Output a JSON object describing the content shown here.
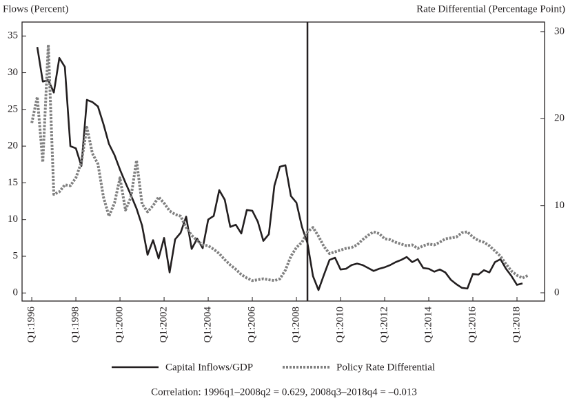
{
  "chart_data": {
    "type": "line",
    "y_label": "Flows (Percent)",
    "y2_label": "Rate Differential (Percentage Point)",
    "note": "Correlation: 1996q1–2008q2 = 0.629, 2008q3–2018q4 = –0.013",
    "x": [
      1996,
      1996.25,
      1996.5,
      1996.75,
      1997,
      1997.25,
      1997.5,
      1997.75,
      1998,
      1998.25,
      1998.5,
      1998.75,
      1999,
      1999.25,
      1999.5,
      1999.75,
      2000,
      2000.25,
      2000.5,
      2000.75,
      2001,
      2001.25,
      2001.5,
      2001.75,
      2002,
      2002.25,
      2002.5,
      2002.75,
      2003,
      2003.25,
      2003.5,
      2003.75,
      2004,
      2004.25,
      2004.5,
      2004.75,
      2005,
      2005.25,
      2005.5,
      2005.75,
      2006,
      2006.25,
      2006.5,
      2006.75,
      2007,
      2007.25,
      2007.5,
      2007.75,
      2008,
      2008.25,
      2008.5,
      2008.75,
      2009,
      2009.25,
      2009.5,
      2009.75,
      2010,
      2010.25,
      2010.5,
      2010.75,
      2011,
      2011.25,
      2011.5,
      2011.75,
      2012,
      2012.25,
      2012.5,
      2012.75,
      2013,
      2013.25,
      2013.5,
      2013.75,
      2014,
      2014.25,
      2014.5,
      2014.75,
      2015,
      2015.25,
      2015.5,
      2015.75,
      2016,
      2016.25,
      2016.5,
      2016.75,
      2017,
      2017.25,
      2017.5,
      2017.75,
      2018,
      2018.25,
      2018.5
    ],
    "xlim": [
      1995.56,
      2019.25
    ],
    "xticks": [
      {
        "value": 1996,
        "label": "Q1:1996"
      },
      {
        "value": 1998,
        "label": "Q1:1998"
      },
      {
        "value": 2000,
        "label": "Q1:2000"
      },
      {
        "value": 2002,
        "label": "Q1:2002"
      },
      {
        "value": 2004,
        "label": "Q1:2004"
      },
      {
        "value": 2006,
        "label": "Q1:2006"
      },
      {
        "value": 2008,
        "label": "Q1:2008"
      },
      {
        "value": 2010,
        "label": "Q1:2010"
      },
      {
        "value": 2012,
        "label": "Q1:2012"
      },
      {
        "value": 2014,
        "label": "Q1:2014"
      },
      {
        "value": 2016,
        "label": "Q1:2016"
      },
      {
        "value": 2018,
        "label": "Q1:2018"
      }
    ],
    "ylim": [
      -1.1,
      36.9
    ],
    "yticks": [
      0,
      5,
      10,
      15,
      20,
      25,
      30,
      35
    ],
    "y2lim": [
      -0.95,
      31.1
    ],
    "y2ticks": [
      0,
      10,
      20,
      30
    ],
    "vline_x": 2008.5,
    "series": [
      {
        "name": "Capital Inflows/GDP",
        "color": "#231f20",
        "dashed": false,
        "values": [
          null,
          33.5,
          28.8,
          29,
          27.3,
          32,
          30.8,
          20,
          19.7,
          17.3,
          26.3,
          26,
          25.4,
          23,
          20.3,
          18.8,
          16.8,
          15,
          13.3,
          11.5,
          9.2,
          5.2,
          7.2,
          4.7,
          7.5,
          2.8,
          7.3,
          8.2,
          10.4,
          6,
          7.4,
          6.1,
          10,
          10.5,
          14,
          12.7,
          9,
          9.3,
          8.1,
          11.3,
          11.2,
          9.7,
          7.1,
          8,
          14.6,
          17.2,
          17.4,
          13.2,
          12.3,
          9,
          6.8,
          2.3,
          0.4,
          2.5,
          4.5,
          4.8,
          3.2,
          3.3,
          3.8,
          4,
          3.8,
          3.4,
          3,
          3.3,
          3.5,
          3.8,
          4.2,
          4.5,
          4.9,
          4.2,
          4.6,
          3.4,
          3.3,
          2.9,
          3.2,
          2.8,
          1.8,
          1.2,
          0.7,
          0.6,
          2.6,
          2.5,
          3.1,
          2.8,
          4.2,
          4.6,
          3.3,
          2.3,
          1.1,
          1.3,
          null
        ]
      },
      {
        "name": "Policy Rate Differential",
        "color": "#808080",
        "dashed": true,
        "axis": "y2",
        "values": [
          19.5,
          22.5,
          15,
          28.5,
          11.3,
          11.6,
          12.4,
          12.3,
          13.2,
          15,
          19,
          16,
          14.8,
          11,
          8.8,
          10.3,
          13.2,
          9.5,
          11,
          15.2,
          10.2,
          9.3,
          10,
          11,
          10.3,
          9.4,
          9,
          8.8,
          7.5,
          6.6,
          6,
          5.5,
          5.4,
          5,
          4.5,
          3.8,
          3.2,
          2.7,
          2.1,
          1.7,
          1.4,
          1.5,
          1.6,
          1.5,
          1.4,
          1.6,
          2.6,
          4.2,
          5.2,
          5.8,
          7,
          7.5,
          6.5,
          5.3,
          4.5,
          4.7,
          4.9,
          5.1,
          5.2,
          5.5,
          6.1,
          6.6,
          7,
          6.8,
          6.2,
          6.1,
          5.8,
          5.6,
          5.4,
          5.5,
          5.1,
          5.4,
          5.6,
          5.5,
          5.8,
          6.2,
          6.3,
          6.4,
          6.9,
          7,
          6.4,
          6,
          5.8,
          5.4,
          4.8,
          4.2,
          3.3,
          2.5,
          2,
          1.7,
          2
        ]
      }
    ]
  }
}
